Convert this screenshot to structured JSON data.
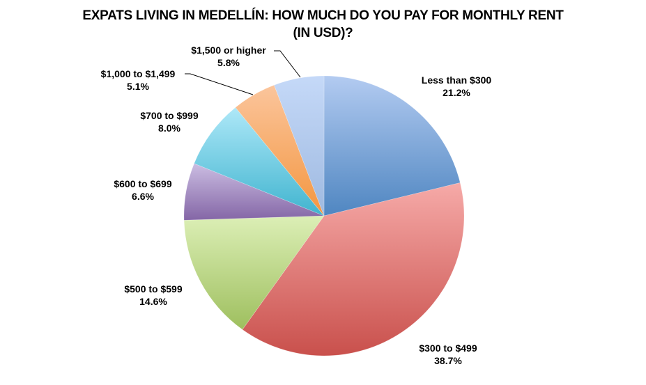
{
  "chart_data": {
    "type": "pie",
    "title": "EXPATS LIVING IN MEDELLÍN:  HOW MUCH DO YOU PAY FOR MONTHLY RENT (IN USD)?",
    "title_lines": [
      "EXPATS LIVING IN MEDELLÍN:  HOW MUCH DO YOU PAY FOR MONTHLY RENT",
      "(IN USD)?"
    ],
    "categories": [
      "Less than $300",
      "$300 to $499",
      "$500 to $599",
      "$600 to $699",
      "$700 to $999",
      "$1,000 to $1,499",
      "$1,500 or higher"
    ],
    "values": [
      21.2,
      38.7,
      14.6,
      6.6,
      8.0,
      5.1,
      5.8
    ],
    "value_labels": [
      "21.2%",
      "38.7%",
      "14.6%",
      "6.6%",
      "8.0%",
      "5.1%",
      "5.8%"
    ],
    "colors": [
      "#6f9bd3",
      "#e07a78",
      "#b9d58c",
      "#a08bbf",
      "#6ccbe0",
      "#f8ad6e",
      "#b5cdf0"
    ],
    "start_angle_deg": 0,
    "direction": "clockwise",
    "legend": "none (data labels with category name and percentage)"
  }
}
